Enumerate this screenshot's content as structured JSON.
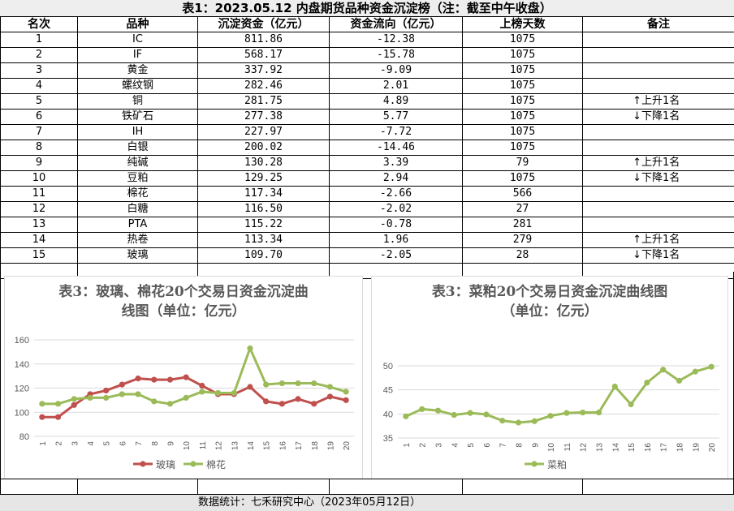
{
  "title": "表1：2023.05.12 内盘期货品种资金沉淀榜（注：截至中午收盘）",
  "columns": [
    "名次",
    "品种",
    "沉淀资金（亿元）",
    "资金流向（亿元）",
    "上榜天数",
    "备注"
  ],
  "rows": [
    {
      "rank": "1",
      "name": "IC",
      "fund": "811.86",
      "flow": "-12.38",
      "days": "1075",
      "arrow": "",
      "note": ""
    },
    {
      "rank": "2",
      "name": "IF",
      "fund": "568.17",
      "flow": "-15.78",
      "days": "1075",
      "arrow": "",
      "note": ""
    },
    {
      "rank": "3",
      "name": "黄金",
      "fund": "337.92",
      "flow": "-9.09",
      "days": "1075",
      "arrow": "",
      "note": ""
    },
    {
      "rank": "4",
      "name": "螺纹钢",
      "fund": "282.46",
      "flow": "2.01",
      "days": "1075",
      "arrow": "",
      "note": ""
    },
    {
      "rank": "5",
      "name": "铜",
      "fund": "281.75",
      "flow": "4.89",
      "days": "1075",
      "arrow": "↑",
      "note": "上升1名"
    },
    {
      "rank": "6",
      "name": "铁矿石",
      "fund": "277.38",
      "flow": "5.77",
      "days": "1075",
      "arrow": "↓",
      "note": "下降1名"
    },
    {
      "rank": "7",
      "name": "IH",
      "fund": "227.97",
      "flow": "-7.72",
      "days": "1075",
      "arrow": "",
      "note": ""
    },
    {
      "rank": "8",
      "name": "白银",
      "fund": "200.02",
      "flow": "-14.46",
      "days": "1075",
      "arrow": "",
      "note": ""
    },
    {
      "rank": "9",
      "name": "纯碱",
      "fund": "130.28",
      "flow": "3.39",
      "days": "79",
      "arrow": "↑",
      "note": "上升1名"
    },
    {
      "rank": "10",
      "name": "豆粕",
      "fund": "129.25",
      "flow": "2.94",
      "days": "1075",
      "arrow": "↓",
      "note": "下降1名"
    },
    {
      "rank": "11",
      "name": "棉花",
      "fund": "117.34",
      "flow": "-2.66",
      "days": "566",
      "arrow": "",
      "note": ""
    },
    {
      "rank": "12",
      "name": "白糖",
      "fund": "116.50",
      "flow": "-2.02",
      "days": "27",
      "arrow": "",
      "note": ""
    },
    {
      "rank": "13",
      "name": "PTA",
      "fund": "115.22",
      "flow": "-0.78",
      "days": "281",
      "arrow": "",
      "note": ""
    },
    {
      "rank": "14",
      "name": "热卷",
      "fund": "113.34",
      "flow": "1.96",
      "days": "279",
      "arrow": "↑",
      "note": "上升1名"
    },
    {
      "rank": "15",
      "name": "玻璃",
      "fund": "109.70",
      "flow": "-2.05",
      "days": "28",
      "arrow": "↓",
      "note": "下降1名"
    }
  ],
  "footer": "数据统计：七禾研究中心（2023年05月12日）",
  "colors": {
    "glass": "#c0504d",
    "cotton": "#9bbb59",
    "meal": "#9bbb59",
    "title_gray": "#595959"
  },
  "chart_data": [
    {
      "type": "line",
      "title": "表3：玻璃、棉花20个交易日资金沉淀曲线图（单位：亿元）",
      "title_line1": "表3：玻璃、棉花20个交易日资金沉淀曲",
      "title_line2": "线图（单位：亿元）",
      "x": [
        "1",
        "2",
        "3",
        "4",
        "5",
        "6",
        "7",
        "8",
        "9",
        "10",
        "11",
        "12",
        "13",
        "14",
        "15",
        "16",
        "17",
        "18",
        "19",
        "20"
      ],
      "ylim": [
        80,
        160
      ],
      "yticks": [
        "80",
        "100",
        "120",
        "140",
        "160"
      ],
      "legend": "bottom",
      "series": [
        {
          "name": "玻璃",
          "color": "#c0504d",
          "values": [
            96,
            96,
            106,
            115,
            118,
            123,
            128,
            127,
            127,
            129,
            122,
            115,
            115,
            121,
            109,
            107,
            111,
            107,
            113,
            110
          ]
        },
        {
          "name": "棉花",
          "color": "#9bbb59",
          "values": [
            107,
            107,
            111,
            112,
            112,
            115,
            115,
            109,
            107,
            112,
            117,
            116,
            116,
            153,
            123,
            124,
            124,
            124,
            121,
            117
          ]
        }
      ]
    },
    {
      "type": "line",
      "title": "表3：菜粕20个交易日资金沉淀曲线图（单位：亿元）",
      "title_line1": "表3：菜粕20个交易日资金沉淀曲线图",
      "title_line2": "（单位：亿元）",
      "x": [
        "1",
        "2",
        "3",
        "4",
        "5",
        "6",
        "7",
        "8",
        "9",
        "10",
        "11",
        "12",
        "13",
        "14",
        "15",
        "16",
        "17",
        "18",
        "19",
        "20"
      ],
      "ylim": [
        35,
        50
      ],
      "yticks": [
        "35",
        "40",
        "45",
        "50"
      ],
      "legend": "bottom",
      "series": [
        {
          "name": "菜粕",
          "color": "#9bbb59",
          "values": [
            39.5,
            41,
            40.7,
            39.8,
            40.2,
            39.9,
            38.6,
            38.2,
            38.5,
            39.6,
            40.2,
            40.3,
            40.3,
            45.7,
            42,
            46.5,
            49.2,
            46.9,
            48.8,
            49.8
          ]
        }
      ]
    }
  ]
}
